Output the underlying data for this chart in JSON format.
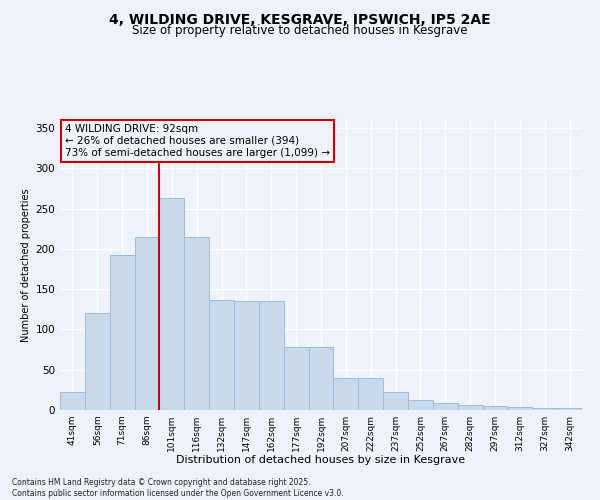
{
  "title_line1": "4, WILDING DRIVE, KESGRAVE, IPSWICH, IP5 2AE",
  "title_line2": "Size of property relative to detached houses in Kesgrave",
  "xlabel": "Distribution of detached houses by size in Kesgrave",
  "ylabel": "Number of detached properties",
  "categories": [
    "41sqm",
    "56sqm",
    "71sqm",
    "86sqm",
    "101sqm",
    "116sqm",
    "132sqm",
    "147sqm",
    "162sqm",
    "177sqm",
    "192sqm",
    "207sqm",
    "222sqm",
    "237sqm",
    "252sqm",
    "267sqm",
    "282sqm",
    "297sqm",
    "312sqm",
    "327sqm",
    "342sqm"
  ],
  "bar_values": [
    22,
    120,
    193,
    215,
    263,
    215,
    137,
    135,
    135,
    78,
    78,
    40,
    40,
    22,
    13,
    9,
    6,
    5,
    4,
    2,
    2
  ],
  "bar_color": "#c8d9ec",
  "bar_edgecolor": "#a0bcd8",
  "background_color": "#eef2fb",
  "grid_color": "#ffffff",
  "vline_x": 3.5,
  "vline_color": "#cc0000",
  "annotation_text": "4 WILDING DRIVE: 92sqm\n← 26% of detached houses are smaller (394)\n73% of semi-detached houses are larger (1,099) →",
  "annotation_box_edgecolor": "#cc0000",
  "annotation_box_facecolor": "#eef2fb",
  "ylim": [
    0,
    360
  ],
  "yticks": [
    0,
    50,
    100,
    150,
    200,
    250,
    300,
    350
  ],
  "footer": "Contains HM Land Registry data © Crown copyright and database right 2025.\nContains public sector information licensed under the Open Government Licence v3.0."
}
